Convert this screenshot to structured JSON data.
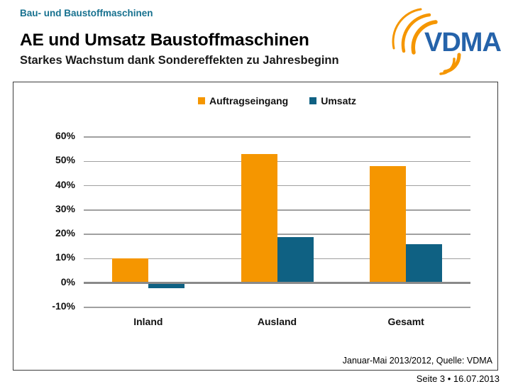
{
  "header": {
    "eyebrow": "Bau- und Baustoffmaschinen",
    "title": "AE und Umsatz Baustoffmaschinen",
    "subtitle": "Starkes Wachstum dank Sondereffekten zu Jahresbeginn",
    "logo_text": "VDMA"
  },
  "colors": {
    "brand_orange": "#F59600",
    "brand_teal": "#0F6183",
    "heading_teal": "#17718F",
    "logo_blue": "#2563AA"
  },
  "chart_data": {
    "type": "bar",
    "categories": [
      "Inland",
      "Ausland",
      "Gesamt"
    ],
    "series": [
      {
        "name": "Auftragseingang",
        "color": "#F59600",
        "values": [
          10,
          53,
          48
        ]
      },
      {
        "name": "Umsatz",
        "color": "#0F6183",
        "values": [
          -2,
          19,
          16
        ]
      }
    ],
    "ylim": [
      -10,
      60
    ],
    "ytick_step": 10,
    "ytick_suffix": "%",
    "grid": true,
    "legend_position": "top-center",
    "source_note": "Januar-Mai 2013/2012, Quelle: VDMA"
  },
  "footer": {
    "page_label": "Seite 3 • 16.07.2013"
  }
}
